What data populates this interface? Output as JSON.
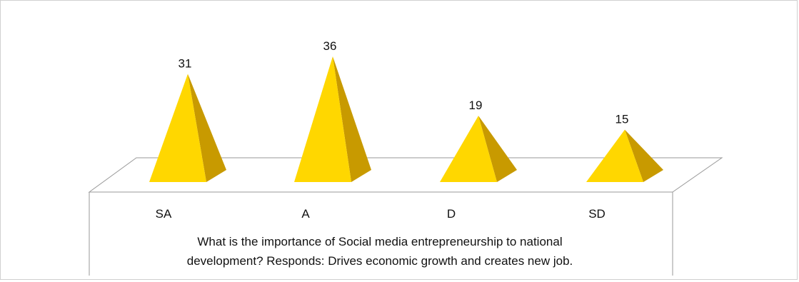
{
  "chart_data": {
    "type": "bar",
    "shape": "pyramid-3d",
    "categories": [
      "SA",
      "A",
      "D",
      "SD"
    ],
    "values": [
      31,
      36,
      19,
      15
    ],
    "xlabel_lines": [
      "What is the importance of Social media entrepreneurship to national",
      "development? Responds: Drives economic growth and creates new job."
    ],
    "ylabel": "",
    "grid": false,
    "legend": "none",
    "colors": {
      "front": "#ffd700",
      "side": "#c89a00",
      "outline": "#9a9a9a"
    }
  }
}
